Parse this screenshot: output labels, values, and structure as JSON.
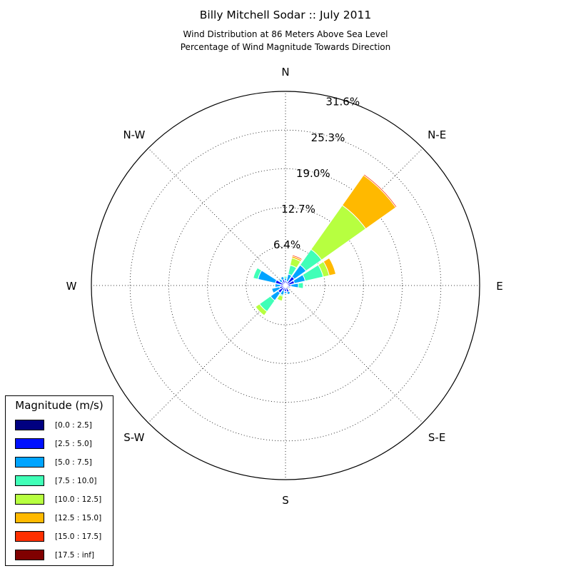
{
  "header": {
    "title": "Billy Mitchell Sodar :: July 2011",
    "subtitle_line1": "Wind Distribution at 86 Meters Above Sea Level",
    "subtitle_line2": "Percentage of Wind Magnitude Towards Direction"
  },
  "chart_data": {
    "type": "windrose",
    "title": "Billy Mitchell Sodar :: July 2011",
    "subtitle": "Wind Distribution at 86 Meters Above Sea Level / Percentage of Wind Magnitude Towards Direction",
    "radial_unit": "%",
    "radial_max": 31.6,
    "radial_ticks": [
      6.4,
      12.7,
      19.0,
      25.3,
      31.6
    ],
    "radial_tick_labels": [
      "6.4%",
      "12.7%",
      "19.0%",
      "25.3%",
      "31.6%"
    ],
    "direction_labels": [
      {
        "label": "N",
        "bearing": 0
      },
      {
        "label": "N-E",
        "bearing": 45
      },
      {
        "label": "E",
        "bearing": 90
      },
      {
        "label": "S-E",
        "bearing": 135
      },
      {
        "label": "S",
        "bearing": 180
      },
      {
        "label": "S-W",
        "bearing": 225
      },
      {
        "label": "W",
        "bearing": 270
      },
      {
        "label": "N-W",
        "bearing": 315
      }
    ],
    "sector_width_deg": 22.5,
    "grid": true,
    "legend": {
      "title": "Magnitude (m/s)",
      "placement": "bottom-left",
      "bins": [
        {
          "label": "[0.0 : 2.5]",
          "color": "#000080"
        },
        {
          "label": "[2.5 : 5.0]",
          "color": "#0010ff"
        },
        {
          "label": "[5.0 : 7.5]",
          "color": "#00a4ff"
        },
        {
          "label": "[7.5 : 10.0]",
          "color": "#40ffb7"
        },
        {
          "label": "[10.0 : 12.5]",
          "color": "#b7ff40"
        },
        {
          "label": "[12.5 : 15.0]",
          "color": "#ffb900"
        },
        {
          "label": "[15.0 : 17.5]",
          "color": "#ff3000"
        },
        {
          "label": "[17.5 : inf]",
          "color": "#800000"
        }
      ]
    },
    "series": [
      {
        "direction": 0,
        "values": [
          0.2,
          0.6,
          0.4,
          0.3,
          0.0,
          0.0,
          0.0,
          0.0
        ]
      },
      {
        "direction": 22.5,
        "values": [
          0.2,
          0.5,
          1.2,
          1.5,
          1.2,
          0.3,
          0.2,
          0.1
        ]
      },
      {
        "direction": 45,
        "values": [
          0.3,
          1.5,
          2.3,
          3.1,
          8.8,
          6.0,
          0.2,
          0.0
        ]
      },
      {
        "direction": 67.5,
        "values": [
          0.3,
          1.2,
          1.8,
          3.0,
          1.0,
          1.1,
          0.0,
          0.0
        ]
      },
      {
        "direction": 90,
        "values": [
          0.2,
          0.7,
          1.2,
          0.8,
          0.0,
          0.0,
          0.0,
          0.0
        ]
      },
      {
        "direction": 112.5,
        "values": [
          0.2,
          0.4,
          0.2,
          0.0,
          0.0,
          0.0,
          0.0,
          0.0
        ]
      },
      {
        "direction": 135,
        "values": [
          0.1,
          0.2,
          0.1,
          0.0,
          0.0,
          0.0,
          0.0,
          0.0
        ]
      },
      {
        "direction": 157.5,
        "values": [
          0.3,
          0.8,
          0.4,
          0.0,
          0.0,
          0.0,
          0.0,
          0.0
        ]
      },
      {
        "direction": 180,
        "values": [
          0.3,
          0.7,
          0.3,
          0.0,
          0.0,
          0.0,
          0.0,
          0.0
        ]
      },
      {
        "direction": 202.5,
        "values": [
          0.3,
          0.6,
          0.7,
          0.2,
          0.8,
          0.0,
          0.0,
          0.0
        ]
      },
      {
        "direction": 225,
        "values": [
          0.3,
          1.2,
          1.5,
          2.2,
          0.8,
          0.0,
          0.0,
          0.0
        ]
      },
      {
        "direction": 247.5,
        "values": [
          0.2,
          0.8,
          1.3,
          0.0,
          0.0,
          0.0,
          0.0,
          0.0
        ]
      },
      {
        "direction": 270,
        "values": [
          0.2,
          0.6,
          0.9,
          0.0,
          0.0,
          0.0,
          0.0,
          0.0
        ]
      },
      {
        "direction": 292.5,
        "values": [
          0.3,
          1.4,
          2.9,
          0.8,
          0.0,
          0.0,
          0.0,
          0.0
        ]
      },
      {
        "direction": 315,
        "values": [
          0.2,
          0.6,
          0.5,
          0.0,
          0.0,
          0.0,
          0.0,
          0.0
        ]
      },
      {
        "direction": 337.5,
        "values": [
          0.2,
          0.8,
          0.5,
          0.0,
          0.0,
          0.0,
          0.0,
          0.0
        ]
      }
    ]
  }
}
